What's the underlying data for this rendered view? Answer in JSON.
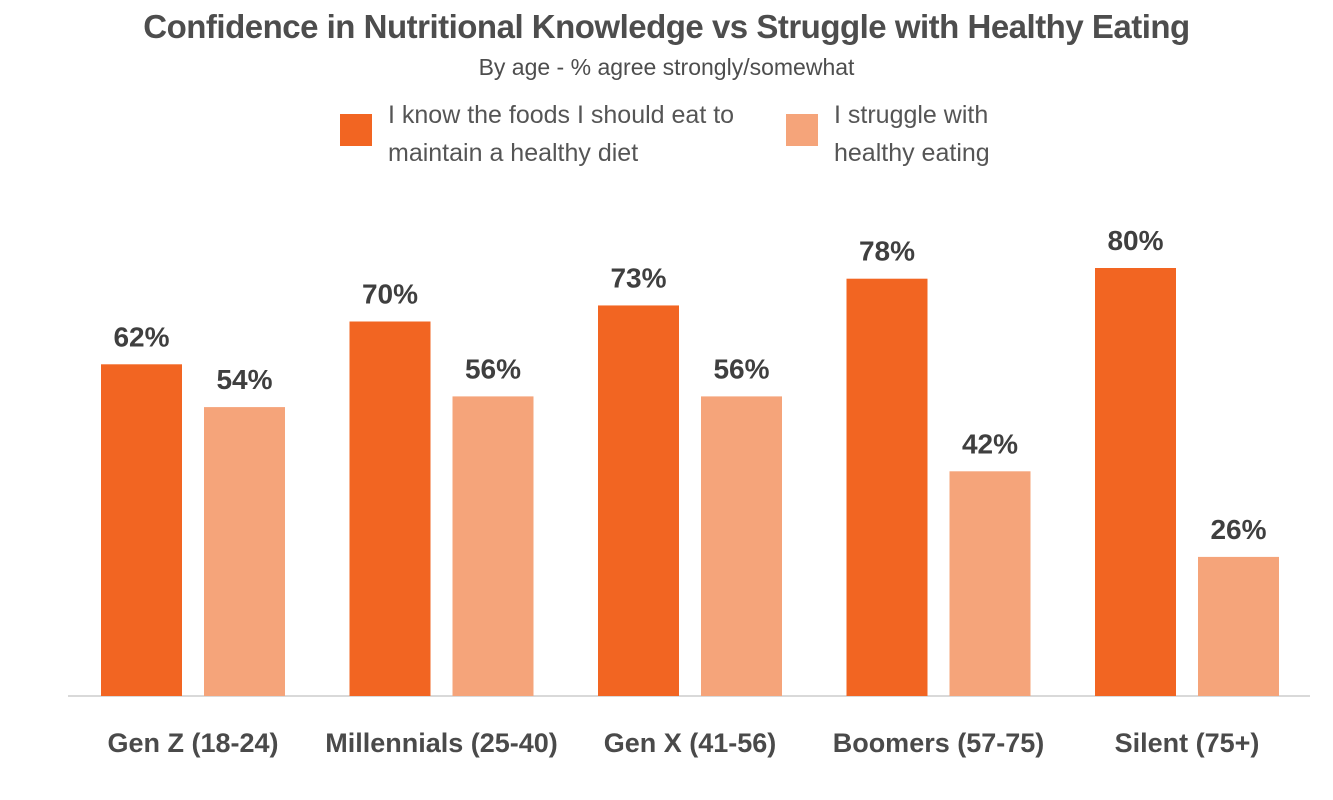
{
  "chart_data": {
    "type": "bar",
    "title": "Confidence in Nutritional Knowledge vs Struggle with Healthy Eating",
    "subtitle": "By age - % agree strongly/somewhat",
    "categories": [
      "Gen Z (18-24)",
      "Millennials (25-40)",
      "Gen X (41-56)",
      "Boomers (57-75)",
      "Silent (75+)"
    ],
    "series": [
      {
        "name_lines": [
          "I know the foods I should eat to",
          "maintain a healthy diet"
        ],
        "values": [
          62,
          70,
          73,
          78,
          80
        ],
        "labels": [
          "62%",
          "70%",
          "73%",
          "78%",
          "80%"
        ],
        "color": "#f26522"
      },
      {
        "name_lines": [
          "I struggle with",
          "healthy eating"
        ],
        "values": [
          54,
          56,
          56,
          42,
          26
        ],
        "labels": [
          "54%",
          "56%",
          "56%",
          "42%",
          "26%"
        ],
        "color": "#f5a47a"
      }
    ],
    "ylim": [
      0,
      100
    ],
    "grid": false,
    "legend_position": "top"
  }
}
